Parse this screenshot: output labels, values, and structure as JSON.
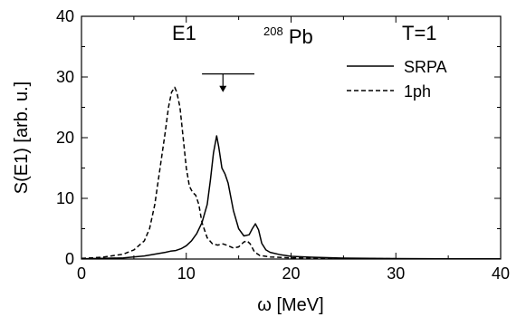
{
  "chart_data": {
    "type": "line",
    "xlabel": "ω [MeV]",
    "ylabel": "S(E1) [arb. u.]",
    "xlim": [
      0,
      40
    ],
    "ylim": [
      0,
      40
    ],
    "xticks": [
      "0",
      "10",
      "20",
      "30",
      "40"
    ],
    "yticks": [
      "0",
      "10",
      "20",
      "30",
      "40"
    ],
    "grid": false,
    "legend_position": "top-right",
    "annotations": {
      "multipolarity": "E1",
      "nucleus_mass": "208",
      "nucleus_symbol": "Pb",
      "isospin": "T=1"
    },
    "arrow_marker": {
      "x": 13.5,
      "y_top": 30.5,
      "y_tip": 27.5,
      "x_left": 11.5,
      "x_right": 16.5
    },
    "series": [
      {
        "name": "SRPA",
        "style": "solid",
        "x": [
          0,
          2,
          4,
          6,
          7,
          8,
          8.5,
          9,
          9.5,
          10,
          10.5,
          11,
          11.5,
          12,
          12.3,
          12.6,
          12.9,
          13.1,
          13.4,
          13.7,
          14,
          14.5,
          15,
          15.5,
          16,
          16.3,
          16.6,
          16.9,
          17.2,
          17.6,
          18,
          19,
          20,
          22,
          25,
          30,
          35,
          40
        ],
        "y": [
          0.05,
          0.1,
          0.2,
          0.5,
          0.8,
          1.1,
          1.3,
          1.4,
          1.7,
          2.2,
          3.0,
          4.2,
          6.0,
          9.0,
          13.0,
          17.5,
          20.3,
          18.5,
          15.0,
          14.0,
          12.5,
          8.0,
          5.0,
          3.8,
          4.0,
          5.0,
          5.8,
          4.8,
          2.6,
          1.5,
          1.1,
          0.7,
          0.45,
          0.3,
          0.15,
          0.08,
          0.05,
          0.03
        ]
      },
      {
        "name": "1ph",
        "style": "dashed",
        "x": [
          0,
          2,
          4,
          5,
          6,
          6.5,
          7,
          7.5,
          8,
          8.3,
          8.6,
          8.9,
          9.1,
          9.4,
          9.7,
          10,
          10.3,
          10.6,
          10.9,
          11.2,
          11.5,
          12,
          12.5,
          13,
          13.5,
          14,
          14.5,
          15,
          15.5,
          15.8,
          16.1,
          16.5,
          17,
          18,
          20,
          25,
          30,
          40
        ],
        "y": [
          0.1,
          0.3,
          0.8,
          1.5,
          3.0,
          5.0,
          9.0,
          15.0,
          21.0,
          25.0,
          27.5,
          28.3,
          27.5,
          25.0,
          20.0,
          15.0,
          12.0,
          11.0,
          10.5,
          9.0,
          6.0,
          3.5,
          2.5,
          2.3,
          2.5,
          2.2,
          1.8,
          2.0,
          2.8,
          3.0,
          2.5,
          1.2,
          0.6,
          0.35,
          0.2,
          0.1,
          0.05,
          0.03
        ]
      }
    ]
  }
}
